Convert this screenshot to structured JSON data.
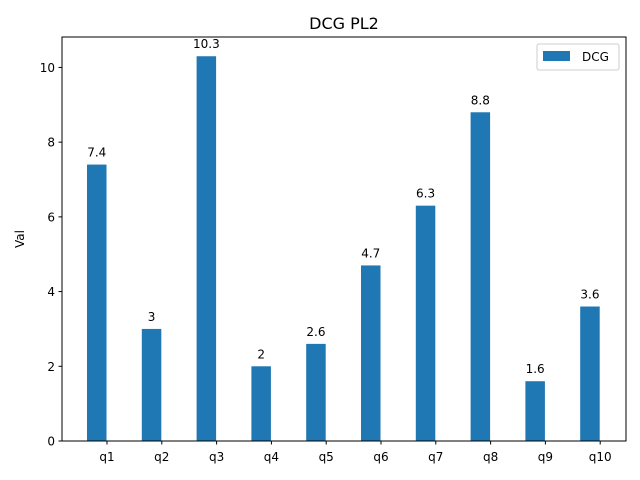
{
  "chart_data": {
    "type": "bar",
    "title": "DCG PL2",
    "xlabel": "",
    "ylabel": "Val",
    "categories": [
      "q1",
      "q2",
      "q3",
      "q4",
      "q5",
      "q6",
      "q7",
      "q8",
      "q9",
      "q10"
    ],
    "series": [
      {
        "name": "DCG",
        "values": [
          7.4,
          3,
          10.3,
          2,
          2.6,
          4.7,
          6.3,
          8.8,
          1.6,
          3.6
        ],
        "labels": [
          "7.4",
          "3",
          "10.3",
          "2",
          "2.6",
          "4.7",
          "6.3",
          "8.8",
          "1.6",
          "3.6"
        ],
        "color": "#1f77b4"
      }
    ],
    "ylim": [
      0,
      10.815
    ],
    "yticks": [
      0,
      2,
      4,
      6,
      8,
      10
    ],
    "ytick_labels": [
      "0",
      "2",
      "4",
      "6",
      "8",
      "10"
    ],
    "grid": false,
    "legend": "upper-right"
  }
}
